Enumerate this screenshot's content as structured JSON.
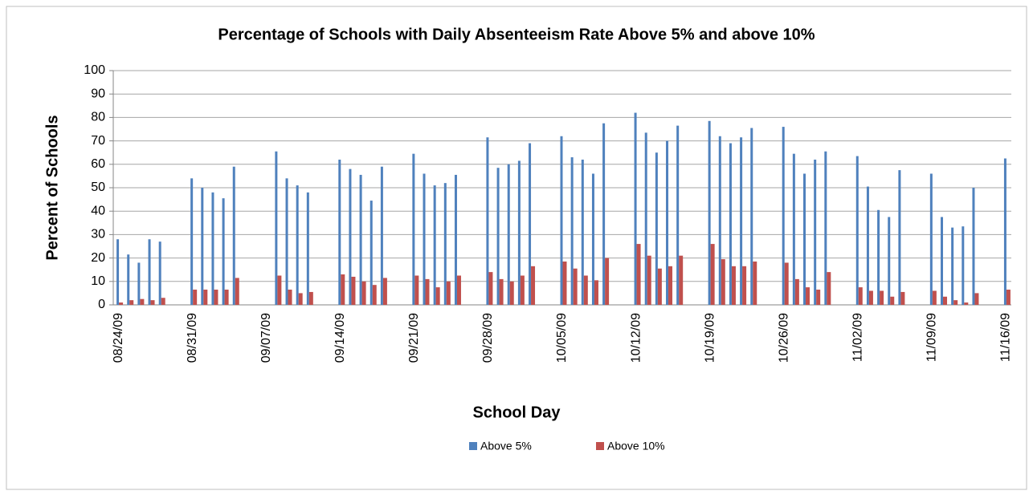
{
  "chart_data": {
    "type": "bar",
    "title": "Percentage of Schools with Daily Absenteeism Rate Above 5% and above 10%",
    "x_label": "School Day",
    "y_label": "Percent of Schools",
    "categories": [
      "08/24/09",
      null,
      null,
      null,
      null,
      null,
      null,
      "08/31/09",
      null,
      null,
      null,
      null,
      null,
      null,
      "09/07/09",
      null,
      null,
      null,
      null,
      null,
      null,
      "09/14/09",
      null,
      null,
      null,
      null,
      null,
      null,
      "09/21/09",
      null,
      null,
      null,
      null,
      null,
      null,
      "09/28/09",
      null,
      null,
      null,
      null,
      null,
      null,
      "10/05/09",
      null,
      null,
      null,
      null,
      null,
      null,
      "10/12/09",
      null,
      null,
      null,
      null,
      null,
      null,
      "10/19/09",
      null,
      null,
      null,
      null,
      null,
      null,
      "10/26/09",
      null,
      null,
      null,
      null,
      null,
      null,
      "11/02/09",
      null,
      null,
      null,
      null,
      null,
      null,
      "11/09/09",
      null,
      null,
      null,
      null,
      null,
      null,
      "11/16/09"
    ],
    "series": [
      {
        "name": "Above 5%",
        "color": "#4f81bd",
        "values": [
          28,
          21.5,
          18,
          28,
          27,
          null,
          null,
          54,
          50,
          48,
          45.5,
          59,
          null,
          null,
          null,
          65.5,
          54,
          51,
          48,
          null,
          null,
          62,
          58,
          55.5,
          44.5,
          59,
          null,
          null,
          64.5,
          56,
          51,
          52,
          55.5,
          null,
          null,
          71.5,
          58.5,
          60,
          61.5,
          69,
          null,
          null,
          72,
          63,
          62,
          56,
          77.5,
          null,
          null,
          82,
          73.5,
          65,
          70,
          76.5,
          null,
          null,
          78.5,
          72,
          69,
          71.5,
          75.5,
          null,
          null,
          76,
          64.5,
          56,
          62,
          65.5,
          null,
          null,
          63.5,
          50.5,
          40.5,
          37.5,
          57.5,
          null,
          null,
          56,
          37.5,
          33,
          33.5,
          50,
          null,
          null,
          62.5
        ]
      },
      {
        "name": "Above 10%",
        "color": "#c0504d",
        "values": [
          1,
          2,
          2.5,
          2,
          3,
          null,
          null,
          6.5,
          6.5,
          6.5,
          6.5,
          11.5,
          null,
          null,
          null,
          12.5,
          6.5,
          5,
          5.5,
          null,
          null,
          13,
          12,
          10,
          8.5,
          11.5,
          null,
          null,
          12.5,
          11,
          7.5,
          10,
          12.5,
          null,
          null,
          14,
          11,
          10,
          12.5,
          16.5,
          null,
          null,
          18.5,
          15.5,
          12.5,
          10.5,
          20,
          null,
          null,
          26,
          21,
          15.5,
          16.5,
          21,
          null,
          null,
          26,
          19.5,
          16.5,
          16.5,
          18.5,
          null,
          null,
          18,
          11,
          7.5,
          6.5,
          14,
          null,
          null,
          7.5,
          6,
          6,
          3.5,
          5.5,
          null,
          null,
          6,
          3.5,
          2,
          1,
          5,
          null,
          null,
          6.5
        ]
      }
    ],
    "ylim": [
      0,
      100
    ],
    "yticks": [
      0,
      10,
      20,
      30,
      40,
      50,
      60,
      70,
      80,
      90,
      100
    ],
    "grid": true,
    "legend": "bottom"
  }
}
